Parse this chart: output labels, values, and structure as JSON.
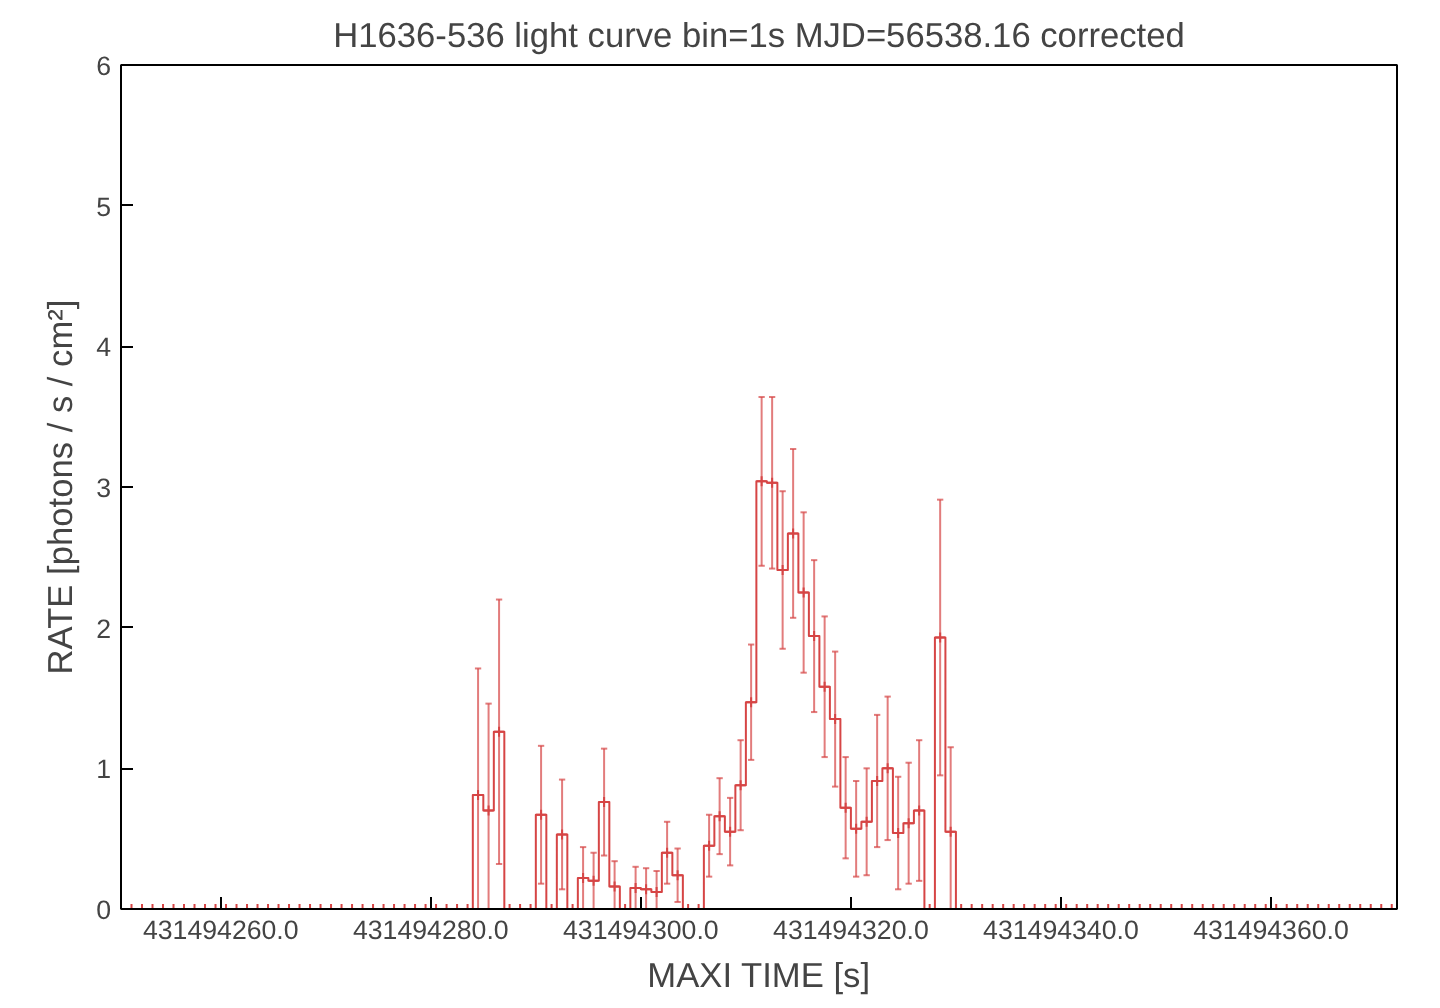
{
  "chart_data": {
    "type": "step",
    "title": "H1636-536 light curve bin=1s MJD=56538.16 corrected",
    "xlabel": "MAXI TIME [s]",
    "ylabel": "RATE [photons / s / cm²]",
    "xlim": [
      431494250.5,
      431494372
    ],
    "ylim": [
      0,
      6
    ],
    "xticks": [
      {
        "value": 431494260,
        "label": "431494260.0"
      },
      {
        "value": 431494280,
        "label": "431494280.0"
      },
      {
        "value": 431494300,
        "label": "431494300.0"
      },
      {
        "value": 431494320,
        "label": "431494320.0"
      },
      {
        "value": 431494340,
        "label": "431494340.0"
      },
      {
        "value": 431494360,
        "label": "431494360.0"
      }
    ],
    "yticks": [
      0,
      1,
      2,
      3,
      4,
      5,
      6
    ],
    "grid": false,
    "marker": "cross",
    "line_style": "solid",
    "series": [
      {
        "color": "#d64545",
        "x": [
          431494251.5,
          431494252.5,
          431494253.5,
          431494254.5,
          431494255.5,
          431494256.5,
          431494257.5,
          431494258.5,
          431494259.5,
          431494260.5,
          431494261.5,
          431494262.5,
          431494263.5,
          431494264.5,
          431494265.5,
          431494266.5,
          431494267.5,
          431494268.5,
          431494269.5,
          431494270.5,
          431494271.5,
          431494272.5,
          431494273.5,
          431494274.5,
          431494275.5,
          431494276.5,
          431494277.5,
          431494278.5,
          431494279.5,
          431494280.5,
          431494281.5,
          431494282.5,
          431494283.5,
          431494284.5,
          431494285.5,
          431494286.5,
          431494287.5,
          431494288.5,
          431494289.5,
          431494290.5,
          431494291.5,
          431494292.5,
          431494293.5,
          431494294.5,
          431494295.5,
          431494296.5,
          431494297.5,
          431494298.5,
          431494299.5,
          431494300.5,
          431494301.5,
          431494302.5,
          431494303.5,
          431494304.5,
          431494305.5,
          431494306.5,
          431494307.5,
          431494308.5,
          431494309.5,
          431494310.5,
          431494311.5,
          431494312.5,
          431494313.5,
          431494314.5,
          431494315.5,
          431494316.5,
          431494317.5,
          431494318.5,
          431494319.5,
          431494320.5,
          431494321.5,
          431494322.5,
          431494323.5,
          431494324.5,
          431494325.5,
          431494326.5,
          431494327.5,
          431494328.5,
          431494329.5,
          431494330.5,
          431494331.5,
          431494332.5,
          431494333.5,
          431494334.5,
          431494335.5,
          431494336.5,
          431494337.5,
          431494338.5,
          431494339.5,
          431494340.5,
          431494341.5,
          431494342.5,
          431494343.5,
          431494344.5,
          431494345.5,
          431494346.5,
          431494347.5,
          431494348.5,
          431494349.5,
          431494350.5,
          431494351.5,
          431494352.5,
          431494353.5,
          431494354.5,
          431494355.5,
          431494356.5,
          431494357.5,
          431494358.5,
          431494359.5,
          431494360.5,
          431494361.5,
          431494362.5,
          431494363.5,
          431494364.5,
          431494365.5,
          431494366.5,
          431494367.5,
          431494368.5,
          431494369.5,
          431494370.5,
          431494371.5
        ],
        "values": [
          0,
          0,
          0,
          0,
          0,
          0,
          0,
          0,
          0,
          0,
          0,
          0,
          0,
          0,
          0,
          0,
          0,
          0,
          0,
          0,
          0,
          0,
          0,
          0,
          0,
          0,
          0,
          0,
          0,
          0,
          0,
          0,
          0,
          0.81,
          0.7,
          1.26,
          0,
          0,
          0,
          0.67,
          0,
          0.53,
          0,
          0.22,
          0.2,
          0.76,
          0.16,
          0,
          0.15,
          0.14,
          0.12,
          0.4,
          0.24,
          0,
          0,
          0.45,
          0.66,
          0.55,
          0.88,
          1.47,
          3.04,
          3.03,
          2.41,
          2.67,
          2.25,
          1.94,
          1.58,
          1.35,
          0.72,
          0.57,
          0.62,
          0.91,
          1.0,
          0.54,
          0.61,
          0.7,
          0,
          1.93,
          0.55,
          0,
          0,
          0,
          0,
          0,
          0,
          0,
          0,
          0,
          0,
          0,
          0,
          0,
          0,
          0,
          0,
          0,
          0,
          0,
          0,
          0,
          0,
          0,
          0,
          0,
          0,
          0,
          0,
          0,
          0,
          0,
          0,
          0,
          0,
          0,
          0,
          0,
          0,
          0,
          0,
          0,
          0
        ],
        "errors": [
          null,
          null,
          null,
          null,
          null,
          null,
          null,
          null,
          null,
          null,
          null,
          null,
          null,
          null,
          null,
          null,
          null,
          null,
          null,
          null,
          null,
          null,
          null,
          null,
          null,
          null,
          null,
          null,
          null,
          null,
          null,
          null,
          null,
          [
            0,
            1.71
          ],
          [
            0,
            1.46
          ],
          0.94,
          null,
          null,
          null,
          0.49,
          null,
          0.39,
          null,
          0.22,
          0.2,
          0.38,
          [
            0,
            0.34
          ],
          null,
          0.15,
          [
            0,
            0.29
          ],
          [
            0,
            0.27
          ],
          0.22,
          0.19,
          null,
          null,
          0.22,
          0.27,
          0.24,
          0.32,
          0.41,
          0.6,
          0.61,
          0.56,
          0.6,
          0.57,
          0.54,
          0.5,
          0.48,
          0.36,
          0.34,
          0.38,
          0.47,
          0.51,
          0.4,
          0.43,
          0.5,
          null,
          0.98,
          [
            0,
            1.15
          ],
          null,
          null,
          null,
          null,
          null,
          null,
          null,
          null,
          null,
          null,
          null,
          null,
          null,
          null,
          null,
          null,
          null,
          null,
          null,
          null,
          null,
          null,
          null,
          null,
          null,
          null,
          null,
          null,
          null,
          null,
          null,
          null,
          null,
          null,
          null,
          null,
          null,
          null,
          null,
          null,
          null,
          null
        ]
      }
    ]
  }
}
